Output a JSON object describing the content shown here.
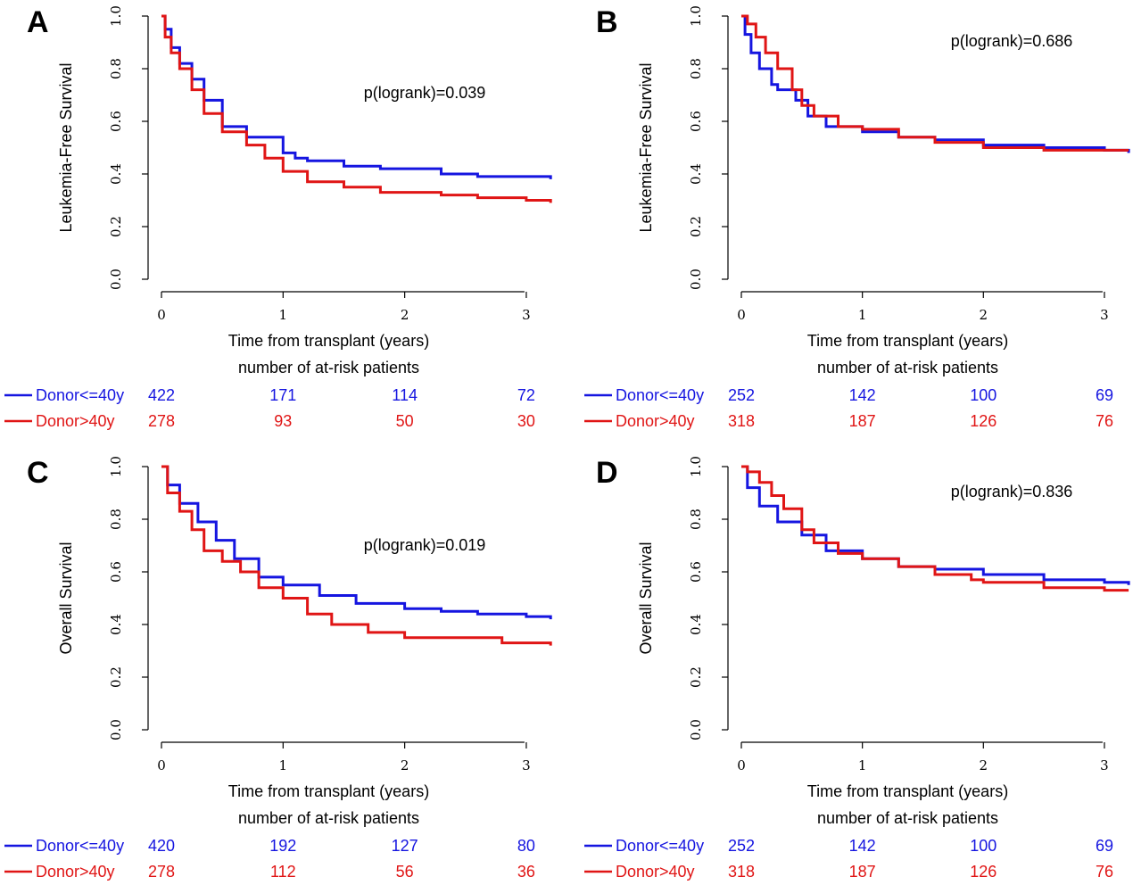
{
  "colors": {
    "blue": "#1515e0",
    "red": "#e01515"
  },
  "chart_data": [
    {
      "panel_letter": "A",
      "type": "line",
      "ylabel": "Leukemia-Free Survival",
      "xlabel": "Time from transplant (years)",
      "xlim": [
        0,
        3.2
      ],
      "ylim": [
        0,
        1
      ],
      "x_ticks": [
        "0",
        "1",
        "2",
        "3"
      ],
      "y_ticks": [
        "0.0",
        "0.2",
        "0.4",
        "0.6",
        "0.8",
        "1.0"
      ],
      "annotation": "p(logrank)=0.039",
      "series": [
        {
          "name": "Donor<=40y",
          "color": "#1515e0",
          "x": [
            0,
            0.03,
            0.08,
            0.15,
            0.25,
            0.35,
            0.5,
            0.7,
            1.0,
            1.1,
            1.2,
            1.5,
            1.8,
            2.0,
            2.3,
            2.6,
            3.0,
            3.2
          ],
          "y": [
            1.0,
            0.95,
            0.88,
            0.82,
            0.76,
            0.68,
            0.58,
            0.54,
            0.48,
            0.46,
            0.45,
            0.43,
            0.42,
            0.42,
            0.4,
            0.39,
            0.39,
            0.38
          ]
        },
        {
          "name": "Donor>40y",
          "color": "#e01515",
          "x": [
            0,
            0.03,
            0.08,
            0.15,
            0.25,
            0.35,
            0.5,
            0.7,
            0.85,
            1.0,
            1.2,
            1.5,
            1.8,
            2.0,
            2.3,
            2.6,
            3.0,
            3.2
          ],
          "y": [
            1.0,
            0.92,
            0.86,
            0.8,
            0.72,
            0.63,
            0.56,
            0.51,
            0.46,
            0.41,
            0.37,
            0.35,
            0.33,
            0.33,
            0.32,
            0.31,
            0.3,
            0.29
          ]
        }
      ],
      "risk_table": {
        "title": "number of at-risk patients",
        "rows": [
          {
            "name": "Donor<=40y",
            "color": "#1515e0",
            "values": [
              "422",
              "171",
              "114",
              "72"
            ]
          },
          {
            "name": "Donor>40y",
            "color": "#e01515",
            "values": [
              "278",
              "93",
              "50",
              "30"
            ]
          }
        ]
      }
    },
    {
      "panel_letter": "B",
      "type": "line",
      "ylabel": "Leukemia-Free Survival",
      "xlabel": "Time from transplant (years)",
      "xlim": [
        0,
        3.2
      ],
      "ylim": [
        0,
        1
      ],
      "x_ticks": [
        "0",
        "1",
        "2",
        "3"
      ],
      "y_ticks": [
        "0.0",
        "0.2",
        "0.4",
        "0.6",
        "0.8",
        "1.0"
      ],
      "annotation": "p(logrank)=0.686",
      "series": [
        {
          "name": "Donor<=40y",
          "color": "#1515e0",
          "x": [
            0,
            0.03,
            0.08,
            0.15,
            0.25,
            0.3,
            0.45,
            0.55,
            0.7,
            1.0,
            1.3,
            1.6,
            2.0,
            2.5,
            3.0,
            3.2
          ],
          "y": [
            1.0,
            0.93,
            0.86,
            0.8,
            0.74,
            0.72,
            0.68,
            0.62,
            0.58,
            0.56,
            0.54,
            0.53,
            0.51,
            0.5,
            0.49,
            0.48
          ]
        },
        {
          "name": "Donor>40y",
          "color": "#e01515",
          "x": [
            0,
            0.05,
            0.12,
            0.2,
            0.3,
            0.42,
            0.5,
            0.6,
            0.8,
            1.0,
            1.3,
            1.6,
            2.0,
            2.5,
            3.0,
            3.2
          ],
          "y": [
            1.0,
            0.97,
            0.92,
            0.86,
            0.8,
            0.72,
            0.66,
            0.62,
            0.58,
            0.57,
            0.54,
            0.52,
            0.5,
            0.49,
            0.49,
            0.49
          ]
        }
      ],
      "risk_table": {
        "title": "number of at-risk patients",
        "rows": [
          {
            "name": "Donor<=40y",
            "color": "#1515e0",
            "values": [
              "252",
              "142",
              "100",
              "69"
            ]
          },
          {
            "name": "Donor>40y",
            "color": "#e01515",
            "values": [
              "318",
              "187",
              "126",
              "76"
            ]
          }
        ]
      }
    },
    {
      "panel_letter": "C",
      "type": "line",
      "ylabel": "Overall Survival",
      "xlabel": "Time from transplant (years)",
      "xlim": [
        0,
        3.2
      ],
      "ylim": [
        0,
        1
      ],
      "x_ticks": [
        "0",
        "1",
        "2",
        "3"
      ],
      "y_ticks": [
        "0.0",
        "0.2",
        "0.4",
        "0.6",
        "0.8",
        "1.0"
      ],
      "annotation": "p(logrank)=0.019",
      "series": [
        {
          "name": "Donor<=40y",
          "color": "#1515e0",
          "x": [
            0,
            0.05,
            0.15,
            0.3,
            0.45,
            0.6,
            0.8,
            1.0,
            1.3,
            1.6,
            2.0,
            2.3,
            2.6,
            3.0,
            3.2
          ],
          "y": [
            1.0,
            0.93,
            0.86,
            0.79,
            0.72,
            0.65,
            0.58,
            0.55,
            0.51,
            0.48,
            0.46,
            0.45,
            0.44,
            0.43,
            0.42
          ]
        },
        {
          "name": "Donor>40y",
          "color": "#e01515",
          "x": [
            0,
            0.05,
            0.15,
            0.25,
            0.35,
            0.5,
            0.65,
            0.8,
            1.0,
            1.2,
            1.4,
            1.7,
            2.0,
            2.5,
            2.8,
            3.2
          ],
          "y": [
            1.0,
            0.9,
            0.83,
            0.76,
            0.68,
            0.64,
            0.6,
            0.54,
            0.5,
            0.44,
            0.4,
            0.37,
            0.35,
            0.35,
            0.33,
            0.32
          ]
        }
      ],
      "risk_table": {
        "title": "number of at-risk patients",
        "rows": [
          {
            "name": "Donor<=40y",
            "color": "#1515e0",
            "values": [
              "420",
              "192",
              "127",
              "80"
            ]
          },
          {
            "name": "Donor>40y",
            "color": "#e01515",
            "values": [
              "278",
              "112",
              "56",
              "36"
            ]
          }
        ]
      }
    },
    {
      "panel_letter": "D",
      "type": "line",
      "ylabel": "Overall Survival",
      "xlabel": "Time from transplant (years)",
      "xlim": [
        0,
        3.2
      ],
      "ylim": [
        0,
        1
      ],
      "x_ticks": [
        "0",
        "1",
        "2",
        "3"
      ],
      "y_ticks": [
        "0.0",
        "0.2",
        "0.4",
        "0.6",
        "0.8",
        "1.0"
      ],
      "annotation": "p(logrank)=0.836",
      "series": [
        {
          "name": "Donor<=40y",
          "color": "#1515e0",
          "x": [
            0,
            0.05,
            0.15,
            0.3,
            0.5,
            0.7,
            1.0,
            1.3,
            1.6,
            2.0,
            2.5,
            3.0,
            3.2
          ],
          "y": [
            1.0,
            0.92,
            0.85,
            0.79,
            0.74,
            0.68,
            0.65,
            0.62,
            0.61,
            0.59,
            0.57,
            0.56,
            0.55
          ]
        },
        {
          "name": "Donor>40y",
          "color": "#e01515",
          "x": [
            0,
            0.05,
            0.15,
            0.25,
            0.35,
            0.5,
            0.6,
            0.8,
            1.0,
            1.3,
            1.6,
            1.9,
            2.0,
            2.5,
            3.0,
            3.2
          ],
          "y": [
            1.0,
            0.98,
            0.94,
            0.89,
            0.84,
            0.76,
            0.71,
            0.67,
            0.65,
            0.62,
            0.59,
            0.57,
            0.56,
            0.54,
            0.53,
            0.53
          ]
        }
      ],
      "risk_table": {
        "title": "number of at-risk patients",
        "rows": [
          {
            "name": "Donor<=40y",
            "color": "#1515e0",
            "values": [
              "252",
              "142",
              "100",
              "69"
            ]
          },
          {
            "name": "Donor>40y",
            "color": "#e01515",
            "values": [
              "318",
              "187",
              "126",
              "76"
            ]
          }
        ]
      }
    }
  ]
}
